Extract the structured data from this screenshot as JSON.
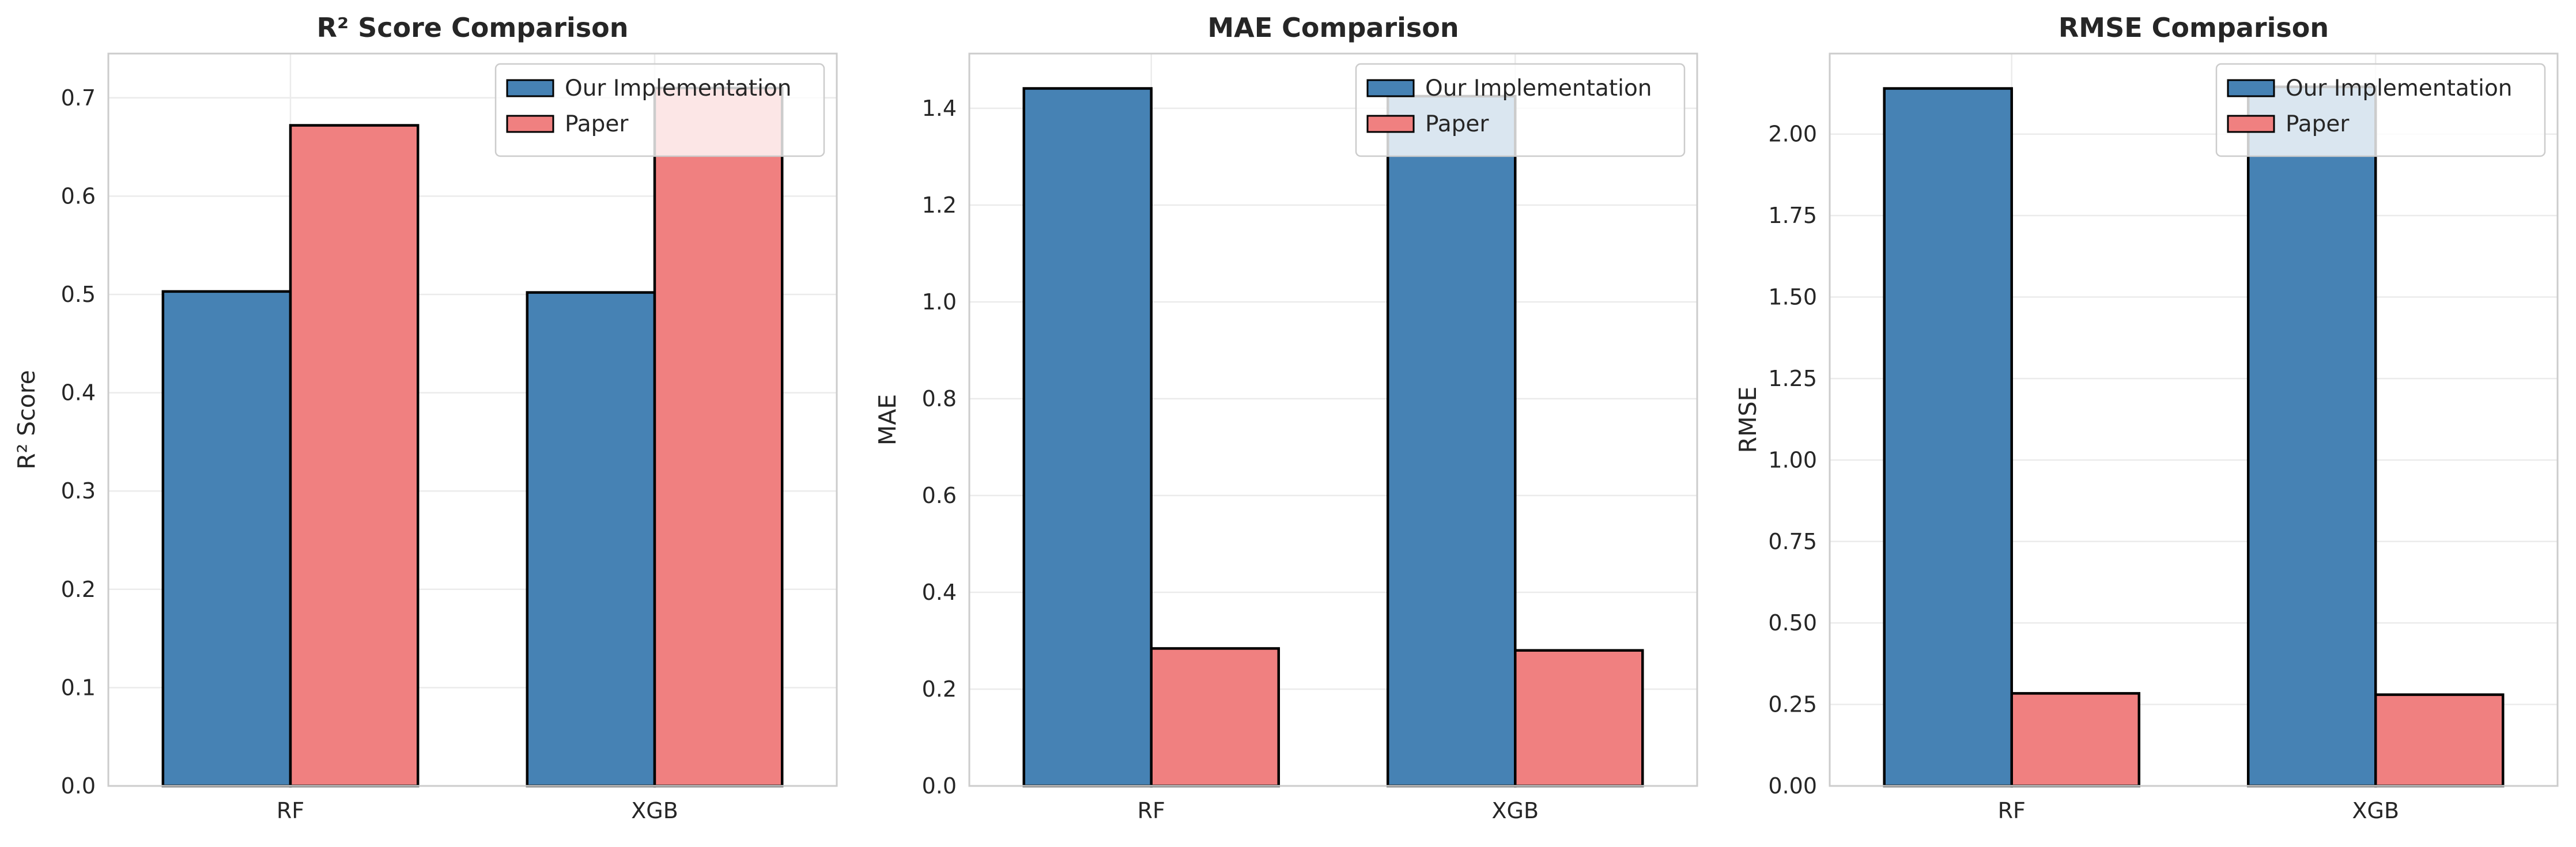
{
  "chart_data": [
    {
      "type": "bar",
      "title": "R² Score Comparison",
      "xlabel": "",
      "ylabel": "R² Score",
      "categories": [
        "RF",
        "XGB"
      ],
      "series": [
        {
          "name": "Our Implementation",
          "values": [
            0.503,
            0.502
          ]
        },
        {
          "name": "Paper",
          "values": [
            0.672,
            0.71
          ]
        }
      ],
      "ylim": [
        0,
        0.745
      ],
      "yticks": [
        0.0,
        0.1,
        0.2,
        0.3,
        0.4,
        0.5,
        0.6,
        0.7
      ],
      "ytick_labels": [
        "0.0",
        "0.1",
        "0.2",
        "0.3",
        "0.4",
        "0.5",
        "0.6",
        "0.7"
      ],
      "grid": true,
      "legend_position": "upper right"
    },
    {
      "type": "bar",
      "title": "MAE Comparison",
      "xlabel": "",
      "ylabel": "MAE",
      "categories": [
        "RF",
        "XGB"
      ],
      "series": [
        {
          "name": "Our Implementation",
          "values": [
            1.441,
            1.425
          ]
        },
        {
          "name": "Paper",
          "values": [
            0.284,
            0.28
          ]
        }
      ],
      "ylim": [
        0,
        1.513
      ],
      "yticks": [
        0.0,
        0.2,
        0.4,
        0.6,
        0.8,
        1.0,
        1.2,
        1.4
      ],
      "ytick_labels": [
        "0.0",
        "0.2",
        "0.4",
        "0.6",
        "0.8",
        "1.0",
        "1.2",
        "1.4"
      ],
      "grid": true,
      "legend_position": "upper right"
    },
    {
      "type": "bar",
      "title": "RMSE Comparison",
      "xlabel": "",
      "ylabel": "RMSE",
      "categories": [
        "RF",
        "XGB"
      ],
      "series": [
        {
          "name": "Our Implementation",
          "values": [
            2.14,
            2.145
          ]
        },
        {
          "name": "Paper",
          "values": [
            0.284,
            0.28
          ]
        }
      ],
      "ylim": [
        0,
        2.247
      ],
      "yticks": [
        0.0,
        0.25,
        0.5,
        0.75,
        1.0,
        1.25,
        1.5,
        1.75,
        2.0
      ],
      "ytick_labels": [
        "0.00",
        "0.25",
        "0.50",
        "0.75",
        "1.00",
        "1.25",
        "1.50",
        "1.75",
        "2.00"
      ],
      "grid": true,
      "legend_position": "upper right"
    }
  ],
  "colors": {
    "Our Implementation": "#4682b4",
    "Paper": "#f08080",
    "bar_edge": "#000000",
    "grid": "#ebebeb",
    "spine": "#cccccc"
  }
}
